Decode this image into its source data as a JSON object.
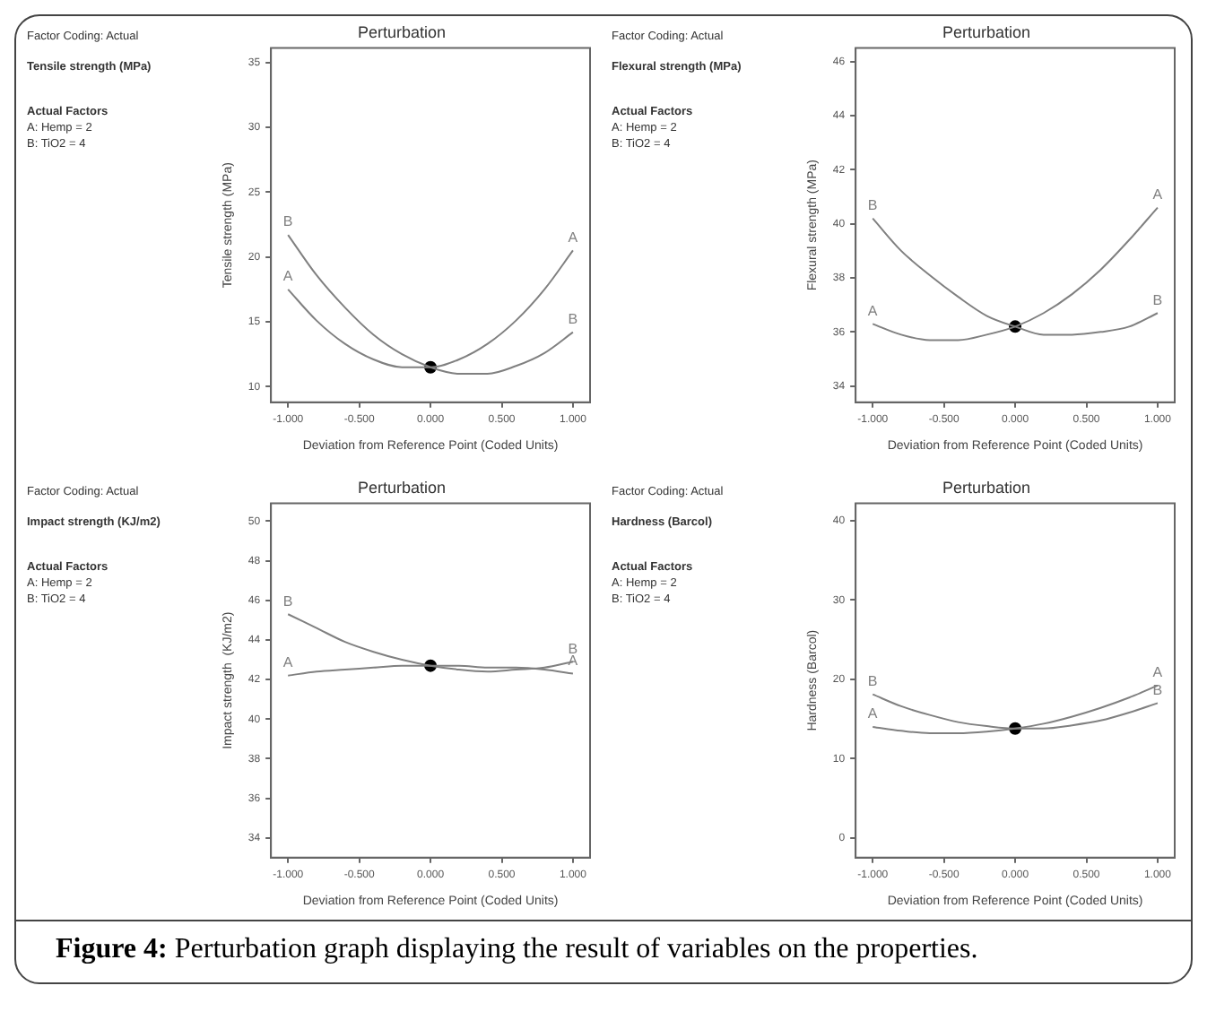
{
  "chart_data": [
    {
      "type": "line",
      "title": "Perturbation",
      "xlabel": "Deviation from Reference Point (Coded Units)",
      "ylabel": "Tensile strength (MPa)",
      "xlim": [
        -1.12,
        1.12
      ],
      "xticks": [
        {
          "value": -1,
          "label": "-1.000"
        },
        {
          "value": -0.5,
          "label": "-0.500"
        },
        {
          "value": 0,
          "label": "0.000"
        },
        {
          "value": 0.5,
          "label": "0.500"
        },
        {
          "value": 1,
          "label": "1.000"
        }
      ],
      "ylim": [
        8.8,
        36.1
      ],
      "yticks": [
        10,
        15,
        20,
        25,
        30,
        35
      ],
      "legend": false,
      "line_style": "solid",
      "annotations": [
        "Factor Coding: Actual",
        "Tensile strength (MPa)",
        "Actual Factors",
        "A: Hemp = 2",
        "B: TiO2 = 4"
      ],
      "series": [
        {
          "name": "A",
          "color": "#808080",
          "marker": "none",
          "x": [
            -1,
            -0.8,
            -0.6,
            -0.4,
            -0.2,
            0,
            0.2,
            0.4,
            0.6,
            0.8,
            1
          ],
          "values": [
            17.5,
            15.1,
            13.3,
            12.1,
            11.5,
            11.5,
            12.1,
            13.3,
            15.1,
            17.5,
            20.5
          ]
        },
        {
          "name": "B",
          "color": "#808080",
          "marker": "none",
          "x": [
            -1,
            -0.8,
            -0.6,
            -0.4,
            -0.2,
            0,
            0.2,
            0.4,
            0.6,
            0.8,
            1
          ],
          "values": [
            21.7,
            18.6,
            16.1,
            14.0,
            12.5,
            11.5,
            11.0,
            11.0,
            11.6,
            12.6,
            14.2
          ]
        },
        {
          "type": "scatter",
          "color": "#000000",
          "marker": "circle",
          "x": [
            0
          ],
          "values": [
            11.5
          ]
        }
      ]
    },
    {
      "type": "line",
      "title": "Perturbation",
      "xlabel": "Deviation from Reference Point (Coded Units)",
      "ylabel": "Flexural strength (MPa)",
      "xlim": [
        -1.12,
        1.12
      ],
      "xticks": [
        {
          "value": -1,
          "label": "-1.000"
        },
        {
          "value": -0.5,
          "label": "-0.500"
        },
        {
          "value": 0,
          "label": "0.000"
        },
        {
          "value": 0.5,
          "label": "0.500"
        },
        {
          "value": 1,
          "label": "1.000"
        }
      ],
      "ylim": [
        33.4,
        46.5
      ],
      "yticks": [
        34,
        36,
        38,
        40,
        42,
        44,
        46
      ],
      "legend": false,
      "line_style": "solid",
      "annotations": [
        "Factor Coding: Actual",
        "Flexural strength (MPa)",
        "Actual Factors",
        "A: Hemp = 2",
        "B: TiO2 = 4"
      ],
      "series": [
        {
          "name": "A",
          "color": "#808080",
          "marker": "none",
          "x": [
            -1,
            -0.8,
            -0.6,
            -0.4,
            -0.2,
            0,
            0.2,
            0.4,
            0.6,
            0.8,
            1
          ],
          "values": [
            36.3,
            35.9,
            35.7,
            35.7,
            35.9,
            36.2,
            36.7,
            37.4,
            38.3,
            39.4,
            40.6
          ]
        },
        {
          "name": "B",
          "color": "#808080",
          "marker": "none",
          "x": [
            -1,
            -0.8,
            -0.6,
            -0.4,
            -0.2,
            0,
            0.2,
            0.4,
            0.6,
            0.8,
            1
          ],
          "values": [
            40.2,
            39.0,
            38.1,
            37.3,
            36.6,
            36.2,
            35.9,
            35.9,
            36.0,
            36.2,
            36.7
          ]
        },
        {
          "type": "scatter",
          "color": "#000000",
          "marker": "circle",
          "x": [
            0
          ],
          "values": [
            36.2
          ]
        }
      ]
    },
    {
      "type": "line",
      "title": "Perturbation",
      "xlabel": "Deviation from Reference Point (Coded Units)",
      "ylabel": "Impact strength  (KJ/m2)",
      "xlim": [
        -1.12,
        1.12
      ],
      "xticks": [
        {
          "value": -1,
          "label": "-1.000"
        },
        {
          "value": -0.5,
          "label": "-0.500"
        },
        {
          "value": 0,
          "label": "0.000"
        },
        {
          "value": 0.5,
          "label": "0.500"
        },
        {
          "value": 1,
          "label": "1.000"
        }
      ],
      "ylim": [
        33,
        50.9
      ],
      "yticks": [
        34,
        36,
        38,
        40,
        42,
        44,
        46,
        48,
        50
      ],
      "legend": false,
      "line_style": "solid",
      "annotations": [
        "Factor Coding: Actual",
        "Impact strength  (KJ/m2)",
        "Actual Factors",
        "A: Hemp = 2",
        "B: TiO2 = 4"
      ],
      "series": [
        {
          "name": "A",
          "color": "#808080",
          "marker": "none",
          "x": [
            -1,
            -0.8,
            -0.6,
            -0.4,
            -0.2,
            0,
            0.2,
            0.4,
            0.6,
            0.8,
            1
          ],
          "values": [
            42.2,
            42.4,
            42.5,
            42.6,
            42.7,
            42.7,
            42.7,
            42.6,
            42.6,
            42.5,
            42.3
          ]
        },
        {
          "name": "B",
          "color": "#808080",
          "marker": "none",
          "x": [
            -1,
            -0.8,
            -0.6,
            -0.4,
            -0.2,
            0,
            0.2,
            0.4,
            0.6,
            0.8,
            1
          ],
          "values": [
            45.3,
            44.6,
            43.9,
            43.4,
            43.0,
            42.7,
            42.5,
            42.4,
            42.5,
            42.6,
            42.9
          ]
        },
        {
          "type": "scatter",
          "color": "#000000",
          "marker": "circle",
          "x": [
            0
          ],
          "values": [
            42.7
          ]
        }
      ]
    },
    {
      "type": "line",
      "title": "Perturbation",
      "xlabel": "Deviation from Reference Point (Coded Units)",
      "ylabel": "Hardness (Barcol)",
      "xlim": [
        -1.12,
        1.12
      ],
      "xticks": [
        {
          "value": -1,
          "label": "-1.000"
        },
        {
          "value": -0.5,
          "label": "-0.500"
        },
        {
          "value": 0,
          "label": "0.000"
        },
        {
          "value": 0.5,
          "label": "0.500"
        },
        {
          "value": 1,
          "label": "1.000"
        }
      ],
      "ylim": [
        -2.5,
        42.2
      ],
      "yticks": [
        0,
        10,
        20,
        30,
        40
      ],
      "legend": false,
      "line_style": "solid",
      "annotations": [
        "Factor Coding: Actual",
        "Hardness (Barcol)",
        "Actual Factors",
        "A: Hemp = 2",
        "B: TiO2 = 4",
        "Figure 4: Perturbation graph displaying the result of variables on the properties."
      ],
      "series": [
        {
          "name": "A",
          "color": "#808080",
          "marker": "none",
          "x": [
            -1,
            -0.8,
            -0.6,
            -0.4,
            -0.2,
            0,
            0.2,
            0.4,
            0.6,
            0.8,
            1
          ],
          "values": [
            14.0,
            13.5,
            13.2,
            13.2,
            13.4,
            13.8,
            14.4,
            15.3,
            16.4,
            17.7,
            19.2
          ]
        },
        {
          "name": "B",
          "color": "#808080",
          "marker": "none",
          "x": [
            -1,
            -0.8,
            -0.6,
            -0.4,
            -0.2,
            0,
            0.2,
            0.4,
            0.6,
            0.8,
            1
          ],
          "values": [
            18.1,
            16.6,
            15.5,
            14.6,
            14.1,
            13.8,
            13.8,
            14.2,
            14.8,
            15.8,
            17.0
          ]
        },
        {
          "type": "scatter",
          "color": "#000000",
          "marker": "circle",
          "x": [
            0
          ],
          "values": [
            13.8
          ]
        }
      ]
    }
  ]
}
